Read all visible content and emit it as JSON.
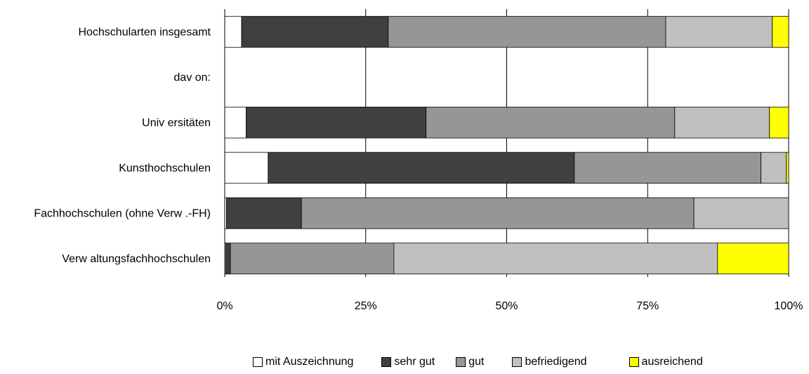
{
  "chart_data": {
    "type": "bar",
    "orientation": "horizontal",
    "stacked": "percent",
    "categories": [
      "Hochschularten insgesamt",
      "dav on:",
      "Univ ersitäten",
      "Kunsthochschulen",
      "Fachhochschulen (ohne Verw .-FH)",
      "Verw altungsfachhochschulen"
    ],
    "series": [
      {
        "name": "mit Auszeichnung",
        "color": "#ffffff",
        "values": [
          3.0,
          0,
          3.8,
          7.7,
          0.3,
          0.2
        ]
      },
      {
        "name": "sehr gut",
        "color": "#404040",
        "values": [
          26.0,
          0,
          31.9,
          54.3,
          13.3,
          0.8
        ]
      },
      {
        "name": "gut",
        "color": "#969696",
        "values": [
          49.2,
          0,
          44.1,
          33.1,
          69.6,
          29.0
        ]
      },
      {
        "name": "befriedigend",
        "color": "#c0c0c0",
        "values": [
          18.9,
          0,
          16.8,
          4.5,
          16.8,
          57.4
        ]
      },
      {
        "name": "ausreichend",
        "color": "#ffff00",
        "values": [
          2.9,
          0,
          3.4,
          0.4,
          0.0,
          12.6
        ]
      }
    ],
    "xlim": [
      0,
      100
    ],
    "x_ticks": [
      "0%",
      "25%",
      "50%",
      "75%",
      "100%"
    ],
    "legend_position": "bottom",
    "grid": "vertical"
  }
}
